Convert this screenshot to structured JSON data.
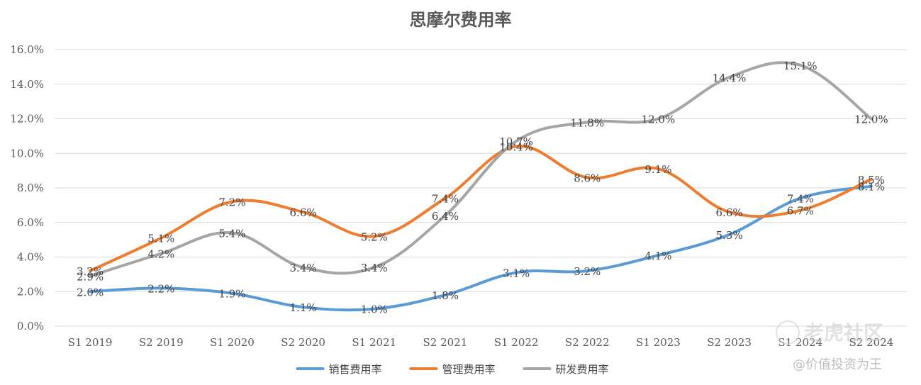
{
  "chart_data": {
    "type": "line",
    "title": "思摩尔费用率",
    "xlabel": "",
    "ylabel": "",
    "ylim": [
      0,
      16
    ],
    "y_ticks": [
      "0.0%",
      "2.0%",
      "4.0%",
      "6.0%",
      "8.0%",
      "10.0%",
      "12.0%",
      "14.0%",
      "16.0%"
    ],
    "y_tick_values": [
      0,
      2,
      4,
      6,
      8,
      10,
      12,
      14,
      16
    ],
    "grid": true,
    "legend_position": "bottom",
    "categories": [
      "S1 2019",
      "S2 2019",
      "S1 2020",
      "S2 2020",
      "S1 2021",
      "S2 2021",
      "S1 2022",
      "S2 2022",
      "S1 2023",
      "S2 2023",
      "S1 2024",
      "S2 2024"
    ],
    "series": [
      {
        "name": "销售费用率",
        "color": "#5B9BD5",
        "values": [
          2.0,
          2.2,
          1.9,
          1.1,
          1.0,
          1.8,
          3.1,
          3.2,
          4.1,
          5.3,
          7.4,
          8.1
        ],
        "labels": [
          "2.0%",
          "2.2%",
          "1.9%",
          "1.1%",
          "1.0%",
          "1.8%",
          "3.1%",
          "3.2%",
          "4.1%",
          "5.3%",
          "7.4%",
          "8.1%"
        ]
      },
      {
        "name": "管理费用率",
        "color": "#ED7D31",
        "values": [
          3.2,
          5.1,
          7.2,
          6.6,
          5.2,
          7.4,
          10.4,
          8.6,
          9.1,
          6.6,
          6.7,
          8.5
        ],
        "labels": [
          "3.2%",
          "5.1%",
          "7.2%",
          "6.6%",
          "5.2%",
          "7.4%",
          "10.4%",
          "8.6%",
          "9.1%",
          "6.6%",
          "6.7%",
          "8.5%"
        ]
      },
      {
        "name": "研发费用率",
        "color": "#A5A5A5",
        "values": [
          2.9,
          4.2,
          5.4,
          3.4,
          3.4,
          6.4,
          10.7,
          11.8,
          12.0,
          14.4,
          15.1,
          12.0
        ],
        "labels": [
          "2.9%",
          "4.2%",
          "5.4%",
          "3.4%",
          "3.4%",
          "6.4%",
          "10.7%",
          "11.8%",
          "12.0%",
          "14.4%",
          "15.1%",
          "12.0%"
        ]
      }
    ]
  },
  "watermark": {
    "logo_text": "老虎社区",
    "handle": "@价值投资为王"
  }
}
